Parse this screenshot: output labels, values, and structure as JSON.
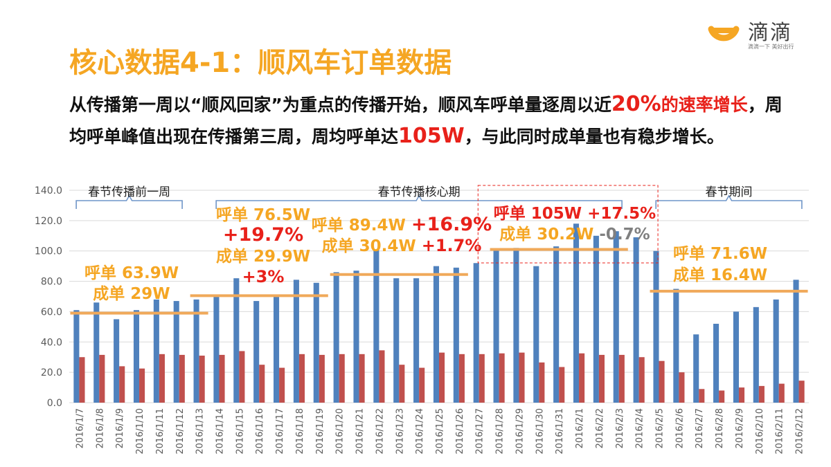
{
  "header": {
    "title": "核心数据4-1：顺风车订单数据",
    "logo_name": "滴滴",
    "logo_slogan": "滴滴一下 美好出行"
  },
  "summary": {
    "p1": "从传播第一周以“顺风回家”为重点的传播开始，顺风车呼单量逐周以近",
    "h1": "20%",
    "h2": "的速率增长",
    "p2": "，周均呼单峰值出现在传播第三周，周均呼单达",
    "h3": "105W",
    "p3": "，与此同时成单量也有稳步增长。"
  },
  "colors": {
    "accent": "#F5A623",
    "red": "#E8211A",
    "grey": "#808080",
    "bar_call": "#4F81BD",
    "bar_done": "#C0504D",
    "bracket": "#6F95C8"
  },
  "chart_data": {
    "type": "bar",
    "ylim": [
      0,
      140
    ],
    "yticks": [
      "0.0",
      "20.0",
      "40.0",
      "60.0",
      "80.0",
      "100.0",
      "120.0",
      "140.0"
    ],
    "grid": true,
    "categories": [
      "2016/1/7",
      "2016/1/8",
      "2016/1/9",
      "2016/1/10",
      "2016/1/11",
      "2016/1/12",
      "2016/1/13",
      "2016/1/14",
      "2016/1/15",
      "2016/1/16",
      "2016/1/17",
      "2016/1/18",
      "2016/1/19",
      "2016/1/20",
      "2016/1/21",
      "2016/1/22",
      "2016/1/23",
      "2016/1/24",
      "2016/1/25",
      "2016/1/26",
      "2016/1/27",
      "2016/1/28",
      "2016/1/29",
      "2016/1/30",
      "2016/1/31",
      "2016/2/1",
      "2016/2/2",
      "2016/2/3",
      "2016/2/4",
      "2016/2/5",
      "2016/2/6",
      "2016/2/7",
      "2016/2/8",
      "2016/2/9",
      "2016/2/10",
      "2016/2/11",
      "2016/2/12"
    ],
    "series": [
      {
        "values": [
          61,
          66,
          55,
          61,
          68,
          67,
          68,
          70,
          82,
          67,
          71,
          81,
          79,
          86,
          87,
          101,
          82,
          82,
          90,
          89,
          92,
          101,
          102,
          90,
          103,
          118,
          110,
          113,
          109,
          100,
          75,
          45,
          52,
          60,
          63,
          68,
          81
        ]
      },
      {
        "values": [
          30,
          31.5,
          24,
          22.5,
          32,
          31.5,
          31,
          31.5,
          34,
          25,
          23,
          32,
          31.5,
          32,
          32,
          34.5,
          25,
          23,
          33,
          32,
          32,
          32.5,
          33,
          26.5,
          23.5,
          32.5,
          31.5,
          31.5,
          30,
          27.5,
          20,
          9,
          8,
          10,
          11,
          12.5,
          14.5
        ]
      }
    ],
    "periods": [
      {
        "label": "春节传播前一周",
        "from": 0,
        "to": 5
      },
      {
        "label": "春节传播核心期",
        "from": 7,
        "to": 27
      },
      {
        "label": "春节期间",
        "from": 29,
        "to": 36
      }
    ],
    "reference_lines": [
      {
        "from": 0,
        "to": 6,
        "value": 59
      },
      {
        "from": 6,
        "to": 12,
        "value": 70.5
      },
      {
        "from": 13,
        "to": 19,
        "value": 84.5
      },
      {
        "from": 21,
        "to": 27,
        "value": 101
      },
      {
        "from": 29,
        "to": 36,
        "value": 73.5
      }
    ],
    "annotations": [
      {
        "lines": [
          [
            {
              "t": "呼单 63.9W",
              "c": "accent"
            }
          ],
          [
            {
              "t": "成单 29W",
              "c": "accent"
            }
          ]
        ]
      },
      {
        "lines": [
          [
            {
              "t": "呼单 76.5W",
              "c": "accent"
            }
          ],
          [
            {
              "t": "+19.7%",
              "c": "red"
            }
          ],
          [
            {
              "t": "成单 29.9W",
              "c": "accent"
            }
          ],
          [
            {
              "t": "+3%",
              "c": "red"
            }
          ]
        ]
      },
      {
        "lines": [
          [
            {
              "t": "呼单 89.4W ",
              "c": "accent"
            },
            {
              "t": "+16.9%",
              "c": "red"
            }
          ],
          [
            {
              "t": "成单 30.4W ",
              "c": "accent"
            },
            {
              "t": "+1.7%",
              "c": "red"
            }
          ]
        ]
      },
      {
        "lines": [
          [
            {
              "t": "呼单 105W ",
              "c": "red"
            },
            {
              "t": "+17.5%",
              "c": "red"
            }
          ],
          [
            {
              "t": "成单 30.2W ",
              "c": "accent"
            },
            {
              "t": "-0.7%",
              "c": "grey"
            }
          ]
        ]
      },
      {
        "lines": [
          [
            {
              "t": "呼单 71.6W",
              "c": "accent"
            }
          ],
          [
            {
              "t": "成单 16.4W",
              "c": "accent"
            }
          ]
        ]
      }
    ]
  }
}
